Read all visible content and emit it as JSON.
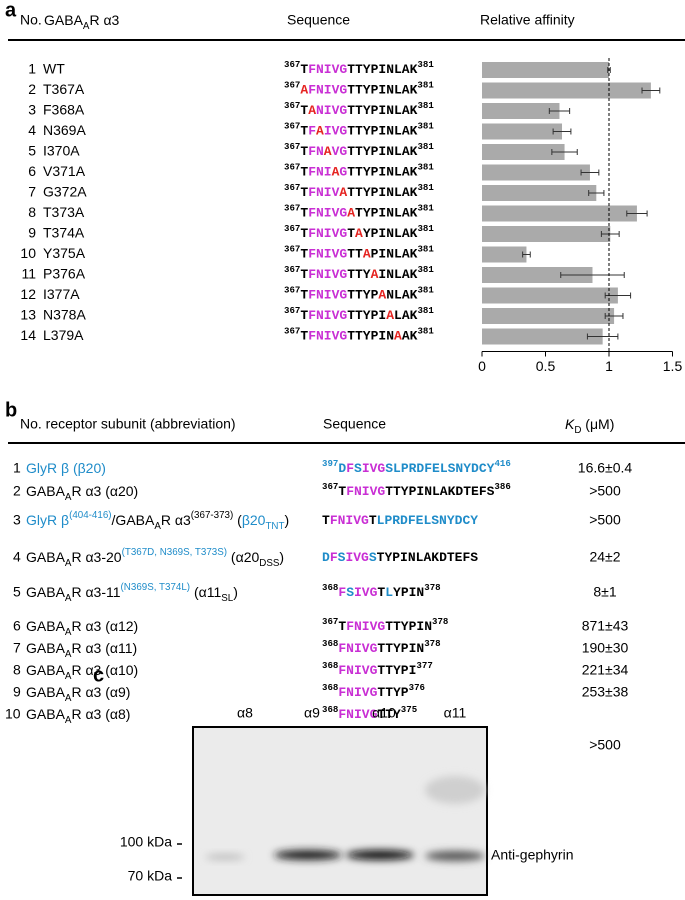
{
  "panel_a": {
    "label": "a",
    "headers": {
      "no": "No.",
      "name": [
        [
          "GABA",
          "#000000"
        ],
        [
          "A",
          "#000000",
          "sub"
        ],
        [
          "R α3",
          "#000000"
        ]
      ],
      "sequence": "Sequence",
      "affinity": "Relative affinity"
    },
    "xlim": [
      0,
      1.5
    ],
    "xticks": [
      0,
      0.5,
      1,
      1.5
    ],
    "reference": 1,
    "bar_color": "#aaaaaa",
    "rows": [
      {
        "no": 1,
        "name": "WT",
        "name_color": "#000000",
        "sequence": {
          "start": [
            "367",
            "#000000"
          ],
          "residues": [
            [
              "T",
              "#000000"
            ],
            [
              "FNIVG",
              "#c92fd4"
            ],
            [
              "TTYPINLAK",
              "#000000"
            ]
          ],
          "end": [
            "381",
            "#000000"
          ]
        },
        "affinity": 1.0,
        "error": 0.01
      },
      {
        "no": 2,
        "name": "T367A",
        "name_color": "#e52421",
        "sequence": {
          "start": [
            "367",
            "#000000"
          ],
          "residues": [
            [
              "A",
              "#e52421"
            ],
            [
              "FNIVG",
              "#c92fd4"
            ],
            [
              "TTYPINLAK",
              "#000000"
            ]
          ],
          "end": [
            "381",
            "#000000"
          ]
        },
        "affinity": 1.33,
        "error": 0.07
      },
      {
        "no": 3,
        "name": "F368A",
        "name_color": "#e52421",
        "sequence": {
          "start": [
            "367",
            "#000000"
          ],
          "residues": [
            [
              "T",
              "#000000"
            ],
            [
              "A",
              "#e52421"
            ],
            [
              "NIVG",
              "#c92fd4"
            ],
            [
              "TTYPINLAK",
              "#000000"
            ]
          ],
          "end": [
            "381",
            "#000000"
          ]
        },
        "affinity": 0.61,
        "error": 0.08
      },
      {
        "no": 4,
        "name": "N369A",
        "name_color": "#e52421",
        "sequence": {
          "start": [
            "367",
            "#000000"
          ],
          "residues": [
            [
              "T",
              "#000000"
            ],
            [
              "F",
              "#c92fd4"
            ],
            [
              "A",
              "#e52421"
            ],
            [
              "IVG",
              "#c92fd4"
            ],
            [
              "TTYPINLAK",
              "#000000"
            ]
          ],
          "end": [
            "381",
            "#000000"
          ]
        },
        "affinity": 0.63,
        "error": 0.07
      },
      {
        "no": 5,
        "name": "I370A",
        "name_color": "#e52421",
        "sequence": {
          "start": [
            "367",
            "#000000"
          ],
          "residues": [
            [
              "T",
              "#000000"
            ],
            [
              "FN",
              "#c92fd4"
            ],
            [
              "A",
              "#e52421"
            ],
            [
              "VG",
              "#c92fd4"
            ],
            [
              "TTYPINLAK",
              "#000000"
            ]
          ],
          "end": [
            "381",
            "#000000"
          ]
        },
        "affinity": 0.65,
        "error": 0.1
      },
      {
        "no": 6,
        "name": "V371A",
        "name_color": "#e52421",
        "sequence": {
          "start": [
            "367",
            "#000000"
          ],
          "residues": [
            [
              "T",
              "#000000"
            ],
            [
              "FNI",
              "#c92fd4"
            ],
            [
              "A",
              "#e52421"
            ],
            [
              "G",
              "#c92fd4"
            ],
            [
              "TTYPINLAK",
              "#000000"
            ]
          ],
          "end": [
            "381",
            "#000000"
          ]
        },
        "affinity": 0.85,
        "error": 0.07
      },
      {
        "no": 7,
        "name": "G372A",
        "name_color": "#e52421",
        "sequence": {
          "start": [
            "367",
            "#000000"
          ],
          "residues": [
            [
              "T",
              "#000000"
            ],
            [
              "FNIV",
              "#c92fd4"
            ],
            [
              "A",
              "#e52421"
            ],
            [
              "TTYPINLAK",
              "#000000"
            ]
          ],
          "end": [
            "381",
            "#000000"
          ]
        },
        "affinity": 0.9,
        "error": 0.06
      },
      {
        "no": 8,
        "name": "T373A",
        "name_color": "#e52421",
        "sequence": {
          "start": [
            "367",
            "#000000"
          ],
          "residues": [
            [
              "T",
              "#000000"
            ],
            [
              "FNIVG",
              "#c92fd4"
            ],
            [
              "A",
              "#e52421"
            ],
            [
              "TYPINLAK",
              "#000000"
            ]
          ],
          "end": [
            "381",
            "#000000"
          ]
        },
        "affinity": 1.22,
        "error": 0.08
      },
      {
        "no": 9,
        "name": "T374A",
        "name_color": "#e52421",
        "sequence": {
          "start": [
            "367",
            "#000000"
          ],
          "residues": [
            [
              "T",
              "#000000"
            ],
            [
              "FNIVG",
              "#c92fd4"
            ],
            [
              "T",
              "#000000"
            ],
            [
              "A",
              "#e52421"
            ],
            [
              "YPINLAK",
              "#000000"
            ]
          ],
          "end": [
            "381",
            "#000000"
          ]
        },
        "affinity": 1.01,
        "error": 0.07
      },
      {
        "no": 10,
        "name": "Y375A",
        "name_color": "#e52421",
        "sequence": {
          "start": [
            "367",
            "#000000"
          ],
          "residues": [
            [
              "T",
              "#000000"
            ],
            [
              "FNIVG",
              "#c92fd4"
            ],
            [
              "TT",
              "#000000"
            ],
            [
              "A",
              "#e52421"
            ],
            [
              "PINLAK",
              "#000000"
            ]
          ],
          "end": [
            "381",
            "#000000"
          ]
        },
        "affinity": 0.35,
        "error": 0.03
      },
      {
        "no": 11,
        "name": "P376A",
        "name_color": "#e52421",
        "sequence": {
          "start": [
            "367",
            "#000000"
          ],
          "residues": [
            [
              "T",
              "#000000"
            ],
            [
              "FNIVG",
              "#c92fd4"
            ],
            [
              "TTY",
              "#000000"
            ],
            [
              "A",
              "#e52421"
            ],
            [
              "INLAK",
              "#000000"
            ]
          ],
          "end": [
            "381",
            "#000000"
          ]
        },
        "affinity": 0.87,
        "error": 0.25
      },
      {
        "no": 12,
        "name": "I377A",
        "name_color": "#e52421",
        "sequence": {
          "start": [
            "367",
            "#000000"
          ],
          "residues": [
            [
              "T",
              "#000000"
            ],
            [
              "FNIVG",
              "#c92fd4"
            ],
            [
              "TTYP",
              "#000000"
            ],
            [
              "A",
              "#e52421"
            ],
            [
              "NLAK",
              "#000000"
            ]
          ],
          "end": [
            "381",
            "#000000"
          ]
        },
        "affinity": 1.07,
        "error": 0.1
      },
      {
        "no": 13,
        "name": "N378A",
        "name_color": "#e52421",
        "sequence": {
          "start": [
            "367",
            "#000000"
          ],
          "residues": [
            [
              "T",
              "#000000"
            ],
            [
              "FNIVG",
              "#c92fd4"
            ],
            [
              "TTYPI",
              "#000000"
            ],
            [
              "A",
              "#e52421"
            ],
            [
              "LAK",
              "#000000"
            ]
          ],
          "end": [
            "381",
            "#000000"
          ]
        },
        "affinity": 1.04,
        "error": 0.07
      },
      {
        "no": 14,
        "name": "L379A",
        "name_color": "#e52421",
        "sequence": {
          "start": [
            "367",
            "#000000"
          ],
          "residues": [
            [
              "T",
              "#000000"
            ],
            [
              "FNIVG",
              "#c92fd4"
            ],
            [
              "TTYPIN",
              "#000000"
            ],
            [
              "A",
              "#e52421"
            ],
            [
              "AK",
              "#000000"
            ]
          ],
          "end": [
            "381",
            "#000000"
          ]
        },
        "affinity": 0.95,
        "error": 0.12
      }
    ]
  },
  "panel_b": {
    "label": "b",
    "headers": {
      "name": "No. receptor subunit (abbreviation)",
      "sequence": "Sequence",
      "kd": [
        [
          "K",
          "#000000",
          "italic"
        ],
        [
          "D",
          "#000000",
          "sub"
        ],
        [
          " (μM)",
          "#000000"
        ]
      ]
    },
    "rows": [
      {
        "no": 1,
        "name": [
          [
            "GlyR β (β20)",
            "#1f8cc9"
          ]
        ],
        "sequence": {
          "start": [
            "397",
            "#1f8cc9"
          ],
          "residues": [
            [
              "D",
              "#1f8cc9"
            ],
            [
              "F",
              "#c92fd4"
            ],
            [
              "S",
              "#1f8cc9"
            ],
            [
              "IVG",
              "#c92fd4"
            ],
            [
              "SLPRDFELSNYDCY",
              "#1f8cc9"
            ]
          ],
          "end": [
            "416",
            "#1f8cc9"
          ]
        },
        "kd": "16.6±0.4"
      },
      {
        "no": 2,
        "name": [
          [
            "GABA",
            "#000000"
          ],
          [
            "A",
            "#000000",
            "sub"
          ],
          [
            "R α3 (α20)",
            "#000000"
          ]
        ],
        "sequence": {
          "start": [
            "367",
            "#000000"
          ],
          "residues": [
            [
              "T",
              "#000000"
            ],
            [
              "FNIVG",
              "#c92fd4"
            ],
            [
              "TTYPINLAKDTEFS",
              "#000000"
            ]
          ],
          "end": [
            "386",
            "#000000"
          ]
        },
        "kd": ">500"
      },
      {
        "no": 3,
        "name": [
          [
            "GlyR β",
            "#1f8cc9"
          ],
          [
            "(404-416)",
            "#1f8cc9",
            "sup"
          ],
          [
            "/GABA",
            "#000000"
          ],
          [
            "A",
            "#000000",
            "sub"
          ],
          [
            "R α3",
            "#000000"
          ],
          [
            "(367-373)",
            "#000000",
            "sup"
          ],
          [
            " (",
            "#000000"
          ],
          [
            "β20",
            "#1f8cc9"
          ],
          [
            "TNT",
            "#1f8cc9",
            "sub"
          ],
          [
            ")",
            "#000000"
          ]
        ],
        "sequence": {
          "residues": [
            [
              "T",
              "#000000"
            ],
            [
              "FNIVG",
              "#c92fd4"
            ],
            [
              "T",
              "#000000"
            ],
            [
              "LPRDFELSNYDCY",
              "#1f8cc9"
            ]
          ]
        },
        "kd": ">500"
      },
      {
        "no": 4,
        "name": [
          [
            "GABA",
            "#000000"
          ],
          [
            "A",
            "#000000",
            "sub"
          ],
          [
            "R α3-20",
            "#000000"
          ],
          [
            "(T367D, N369S, T373S)",
            "#1f8cc9",
            "sup"
          ],
          [
            " (α20",
            "#000000"
          ],
          [
            "DSS",
            "#000000",
            "sub"
          ],
          [
            ")",
            "#000000"
          ]
        ],
        "sequence": {
          "residues": [
            [
              "D",
              "#1f8cc9"
            ],
            [
              "F",
              "#c92fd4"
            ],
            [
              "S",
              "#1f8cc9"
            ],
            [
              "IVG",
              "#c92fd4"
            ],
            [
              "S",
              "#1f8cc9"
            ],
            [
              "TYPINLAKDTEFS",
              "#000000"
            ]
          ]
        },
        "kd": "24±2"
      },
      {
        "no": 5,
        "name": [
          [
            "GABA",
            "#000000"
          ],
          [
            "A",
            "#000000",
            "sub"
          ],
          [
            "R α3-11",
            "#000000"
          ],
          [
            "(N369S, T374L)",
            "#1f8cc9",
            "sup"
          ],
          [
            " (α11",
            "#000000"
          ],
          [
            "SL",
            "#000000",
            "sub"
          ],
          [
            ")",
            "#000000"
          ]
        ],
        "sequence": {
          "start": [
            "368",
            "#000000"
          ],
          "residues": [
            [
              "F",
              "#c92fd4"
            ],
            [
              "S",
              "#1f8cc9"
            ],
            [
              "IVG",
              "#c92fd4"
            ],
            [
              "T",
              "#000000"
            ],
            [
              "L",
              "#1f8cc9"
            ],
            [
              "YPIN",
              "#000000"
            ]
          ],
          "end": [
            "378",
            "#000000"
          ]
        },
        "kd": "8±1"
      },
      {
        "no": 6,
        "name": [
          [
            "GABA",
            "#000000"
          ],
          [
            "A",
            "#000000",
            "sub"
          ],
          [
            "R α3 (α12)",
            "#000000"
          ]
        ],
        "sequence": {
          "start": [
            "367",
            "#000000"
          ],
          "residues": [
            [
              "T",
              "#000000"
            ],
            [
              "FNIVG",
              "#c92fd4"
            ],
            [
              "TTYPIN",
              "#000000"
            ]
          ],
          "end": [
            "378",
            "#000000"
          ]
        },
        "kd": "871±43"
      },
      {
        "no": 7,
        "name": [
          [
            "GABA",
            "#000000"
          ],
          [
            "A",
            "#000000",
            "sub"
          ],
          [
            "R α3 (α11)",
            "#000000"
          ]
        ],
        "sequence": {
          "start": [
            "368",
            "#000000"
          ],
          "residues": [
            [
              "FNIVG",
              "#c92fd4"
            ],
            [
              "TTYPIN",
              "#000000"
            ]
          ],
          "end": [
            "378",
            "#000000"
          ]
        },
        "kd": "190±30"
      },
      {
        "no": 8,
        "name": [
          [
            "GABA",
            "#000000"
          ],
          [
            "A",
            "#000000",
            "sub"
          ],
          [
            "R α3 (α10)",
            "#000000"
          ]
        ],
        "sequence": {
          "start": [
            "368",
            "#000000"
          ],
          "residues": [
            [
              "FNIVG",
              "#c92fd4"
            ],
            [
              "TTYPI",
              "#000000"
            ]
          ],
          "end": [
            "377",
            "#000000"
          ]
        },
        "kd": "221±34"
      },
      {
        "no": 9,
        "name": [
          [
            "GABA",
            "#000000"
          ],
          [
            "A",
            "#000000",
            "sub"
          ],
          [
            "R α3 (α9)",
            "#000000"
          ]
        ],
        "sequence": {
          "start": [
            "368",
            "#000000"
          ],
          "residues": [
            [
              "FNIVG",
              "#c92fd4"
            ],
            [
              "TTYP",
              "#000000"
            ]
          ],
          "end": [
            "376",
            "#000000"
          ]
        },
        "kd": "253±38"
      },
      {
        "no": 10,
        "name": [
          [
            "GABA",
            "#000000"
          ],
          [
            "A",
            "#000000",
            "sub"
          ],
          [
            "R α3 (α8)",
            "#000000"
          ]
        ],
        "sequence": {
          "start": [
            "368",
            "#000000"
          ],
          "residues": [
            [
              "FNIVG",
              "#c92fd4"
            ],
            [
              "TTY",
              "#000000"
            ]
          ],
          "end": [
            "375",
            "#000000"
          ]
        },
        "kd": ">500"
      }
    ]
  },
  "panel_c": {
    "label": "c",
    "lanes": [
      "α8",
      "α9",
      "α10",
      "α11"
    ],
    "markers": [
      "100 kDa",
      "70 kDa"
    ],
    "antibody": "Anti-gephyrin"
  }
}
